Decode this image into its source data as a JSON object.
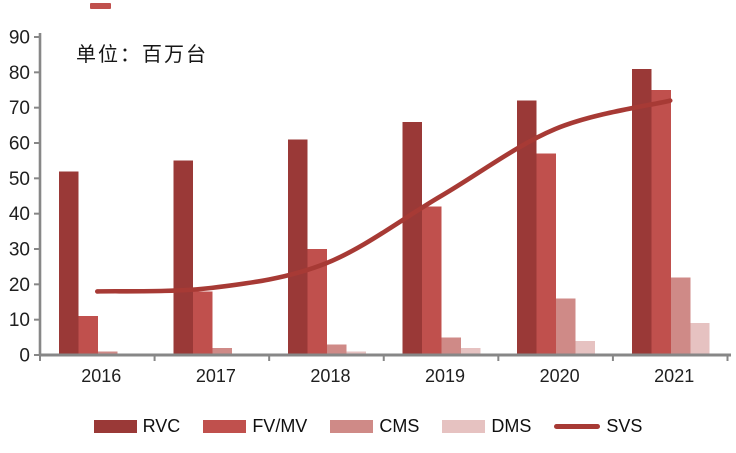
{
  "decor": {
    "stray_dash_color": "#c0504d"
  },
  "chart_data": {
    "type": "bar",
    "title": "",
    "unit_annotation": "单位：百万台",
    "categories": [
      "2016",
      "2017",
      "2018",
      "2019",
      "2020",
      "2021"
    ],
    "series": [
      {
        "name": "RVC",
        "type": "bar",
        "color": "#9a3937",
        "values": [
          52,
          55,
          61,
          66,
          72,
          81
        ]
      },
      {
        "name": "FV/MV",
        "type": "bar",
        "color": "#c0504d",
        "values": [
          11,
          18,
          30,
          42,
          57,
          75
        ]
      },
      {
        "name": "CMS",
        "type": "bar",
        "color": "#cf8a87",
        "values": [
          1,
          2,
          3,
          5,
          16,
          22
        ]
      },
      {
        "name": "DMS",
        "type": "bar",
        "color": "#e6c2c1",
        "values": [
          0,
          0,
          1,
          2,
          4,
          9
        ]
      },
      {
        "name": "SVS",
        "type": "line",
        "color": "#a73a35",
        "values": [
          18,
          19,
          26,
          45,
          64,
          72
        ]
      }
    ],
    "xlabel": "",
    "ylabel": "",
    "ylim": [
      0,
      90
    ],
    "y_ticks": [
      0,
      10,
      20,
      30,
      40,
      50,
      60,
      70,
      80,
      90
    ],
    "grid": false,
    "legend_position": "bottom",
    "axis_color": "#878787",
    "label_color": "#1f1f1f"
  }
}
